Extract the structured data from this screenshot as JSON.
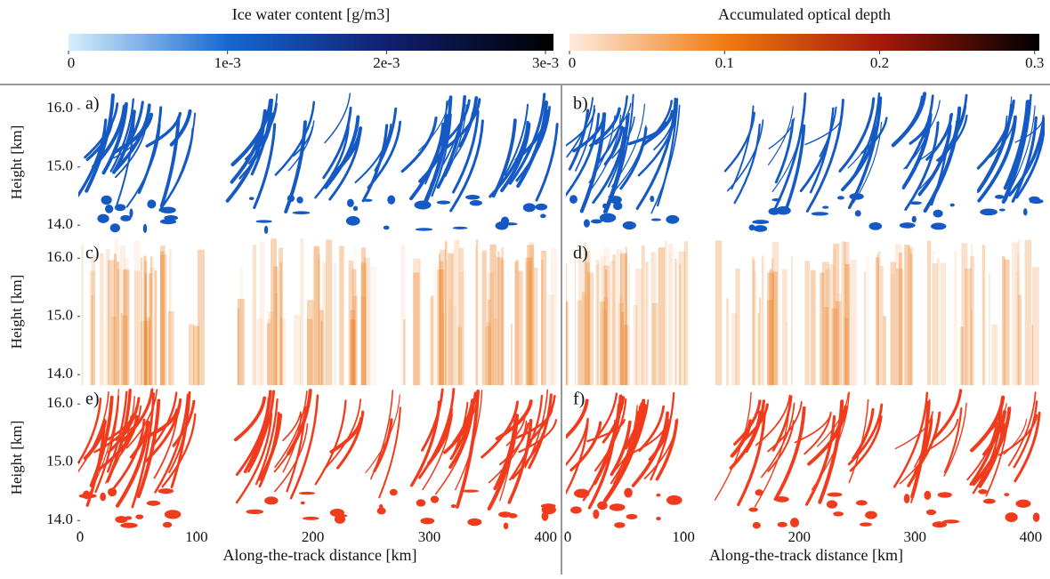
{
  "colorbars": [
    {
      "title": "Ice water content [g/m3]",
      "colors": [
        "#d8eefc",
        "#1466cf",
        "#101e6e",
        "#000000"
      ],
      "clim": [
        0,
        0.00305
      ],
      "ticks": [
        0,
        {
          "value": 0.001,
          "label": "1e-3"
        },
        {
          "value": 0.002,
          "label": "2e-3"
        },
        {
          "value": 0.003,
          "label": "3e-3"
        }
      ]
    },
    {
      "title": "Accumulated optical depth",
      "colors": [
        "#fdece0",
        "#f07a10",
        "#a3180a",
        "#000000"
      ],
      "clim": [
        0,
        0.303
      ],
      "ticks": [
        0,
        0.1,
        0.2,
        0.3
      ]
    }
  ],
  "axes": {
    "xlabel": "Along-the-track distance [km]",
    "ylabel": "Height [km]",
    "xlim": [
      0,
      412
    ],
    "xticks": [
      0,
      100,
      200,
      300,
      400
    ],
    "ylim": [
      13.82,
      16.34
    ],
    "yticks": [
      {
        "value": 14,
        "label": "14.0"
      },
      {
        "value": 15,
        "label": "15.0"
      },
      {
        "value": 16,
        "label": "16.0"
      }
    ]
  },
  "panels": [
    {
      "label": "a)",
      "style": "ice",
      "color": "#1559c4"
    },
    {
      "label": "b)",
      "style": "ice",
      "color": "#1559c4"
    },
    {
      "label": "c)",
      "style": "depth",
      "color": "#e8740f"
    },
    {
      "label": "d)",
      "style": "depth",
      "color": "#e8740f"
    },
    {
      "label": "e)",
      "style": "mask",
      "color": "#f03c1c"
    },
    {
      "label": "f)",
      "style": "mask",
      "color": "#f03c1c"
    }
  ]
}
